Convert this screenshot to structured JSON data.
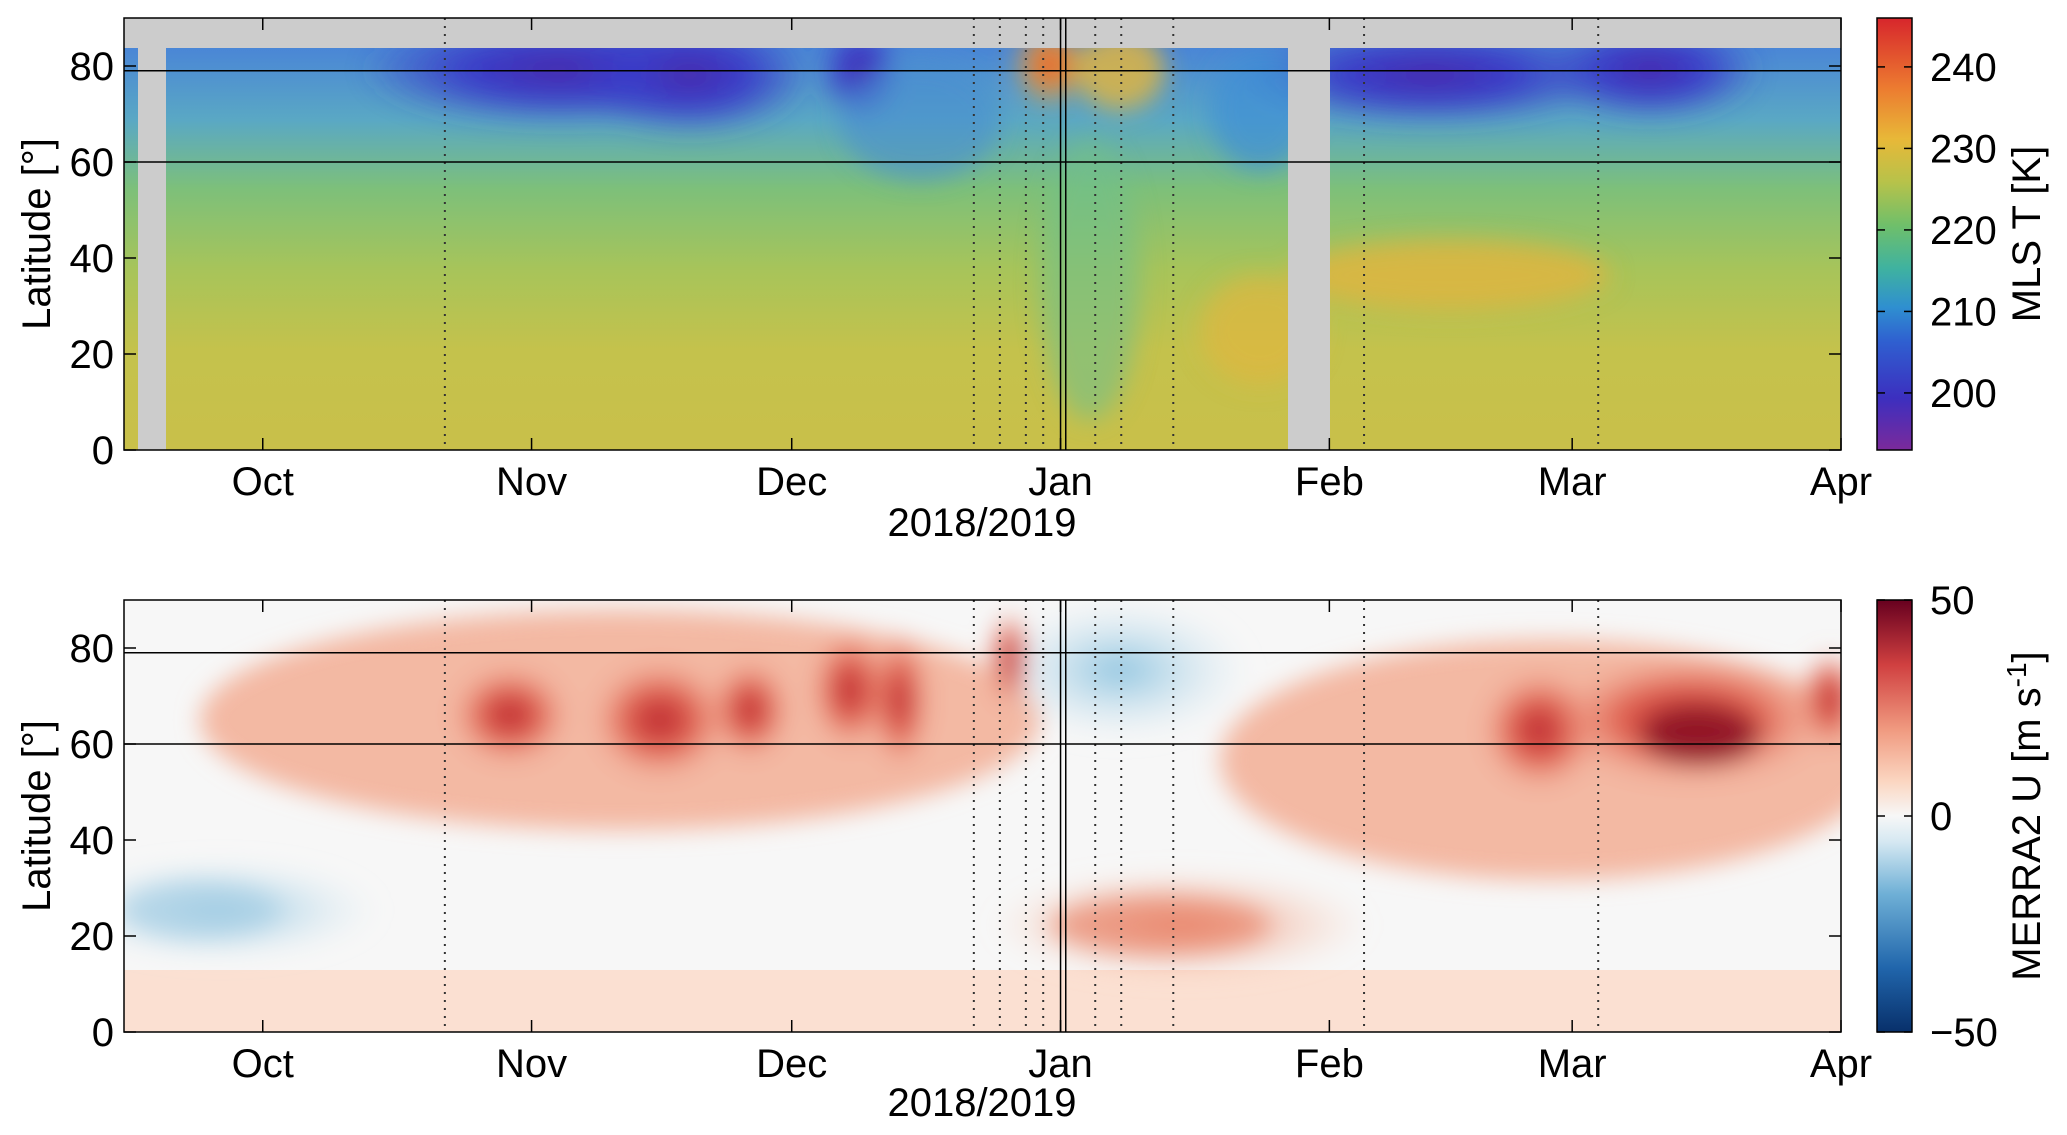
{
  "chart_data": [
    {
      "type": "heatmap",
      "xlabel": "2018/2019",
      "ylabel": "Latitude [°]",
      "x_ticks": [
        "Oct",
        "Nov",
        "Dec",
        "Jan",
        "Feb",
        "Mar",
        "Apr"
      ],
      "x_tick_days": [
        16,
        47,
        77,
        108,
        139,
        167,
        198
      ],
      "x_range_days": [
        0,
        198
      ],
      "y_ticks": [
        "0",
        "20",
        "40",
        "60",
        "80"
      ],
      "ylim": [
        0,
        90
      ],
      "hlines_latitude": [
        60,
        79
      ],
      "colorbar": {
        "label": "MLS T [K]",
        "ticks": [
          "200",
          "210",
          "220",
          "230",
          "240"
        ],
        "range": [
          193,
          246
        ],
        "colormap": "spectral"
      },
      "data_gaps_days": [
        [
          2,
          5
        ],
        [
          134,
          139
        ]
      ],
      "data_top_latitude": 83
    },
    {
      "type": "heatmap",
      "xlabel": "2018/2019",
      "ylabel": "Latitude [°]",
      "x_ticks": [
        "Oct",
        "Nov",
        "Dec",
        "Jan",
        "Feb",
        "Mar",
        "Apr"
      ],
      "x_tick_days": [
        16,
        47,
        77,
        108,
        139,
        167,
        198
      ],
      "x_range_days": [
        0,
        198
      ],
      "y_ticks": [
        "0",
        "20",
        "40",
        "60",
        "80"
      ],
      "ylim": [
        0,
        90
      ],
      "hlines_latitude": [
        60,
        79
      ],
      "colorbar": {
        "label": "MERRA2 U [m s-1]",
        "label_base": "MERRA2 U [m s",
        "label_exp": "-1",
        "label_end": "]",
        "ticks": [
          "-50",
          "0",
          "50"
        ],
        "tick_labels": [
          "−50",
          "0",
          "50"
        ],
        "range": [
          -50,
          50
        ],
        "colormap": "red-blue"
      }
    }
  ],
  "vlines_dotted_days": [
    37,
    98,
    101,
    104,
    106,
    112,
    115,
    121,
    143,
    170
  ],
  "vlines_solid_days": [
    108,
    108.6
  ]
}
